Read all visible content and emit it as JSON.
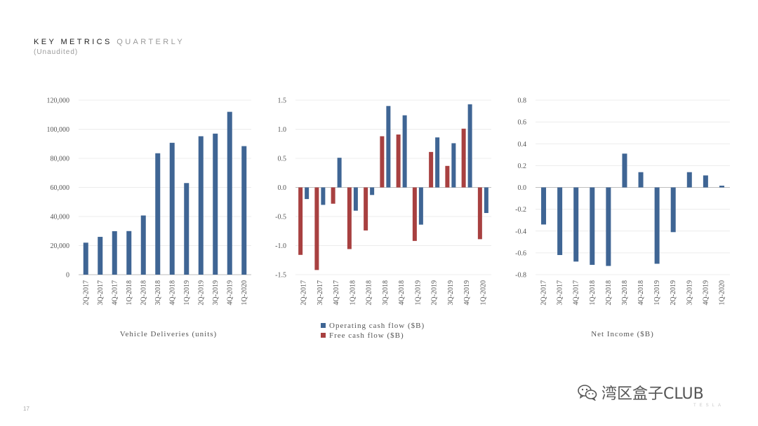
{
  "header": {
    "title_strong": "KEY METRICS",
    "title_dim": "QUARTERLY",
    "subtitle": "(Unaudited)"
  },
  "page_number": "17",
  "watermark": {
    "text": "湾区盒子CLUB",
    "icon": "wechat-icon"
  },
  "brand_text": "TESLA",
  "colors": {
    "blue": "#3f6594",
    "red": "#a84040",
    "grid": "#ececec",
    "axis": "#bdbdbd"
  },
  "chart_data": [
    {
      "type": "bar",
      "title": "Vehicle Deliveries (units)",
      "categories": [
        "2Q-2017",
        "3Q-2017",
        "4Q-2017",
        "1Q-2018",
        "2Q-2018",
        "3Q-2018",
        "4Q-2018",
        "1Q-2019",
        "2Q-2019",
        "3Q-2019",
        "4Q-2019",
        "1Q-2020"
      ],
      "series": [
        {
          "name": "Vehicle Deliveries",
          "color": "#3f6594",
          "values": [
            22000,
            26000,
            29900,
            29980,
            40700,
            83500,
            90700,
            63000,
            95200,
            97000,
            112000,
            88400
          ]
        }
      ],
      "ylim": [
        0,
        120000
      ],
      "yticks": [
        0,
        20000,
        40000,
        60000,
        80000,
        100000,
        120000
      ],
      "ytick_labels": [
        "0",
        "20,000",
        "40,000",
        "60,000",
        "80,000",
        "100,000",
        "120,000"
      ],
      "grid": true
    },
    {
      "type": "bar",
      "title": "",
      "categories": [
        "2Q-2017",
        "3Q-2017",
        "4Q-2017",
        "1Q-2018",
        "2Q-2018",
        "3Q-2018",
        "4Q-2018",
        "1Q-2019",
        "2Q-2019",
        "3Q-2019",
        "4Q-2019",
        "1Q-2020"
      ],
      "series": [
        {
          "name": "Free cash flow ($B)",
          "color": "#a84040",
          "values": [
            -1.16,
            -1.42,
            -0.28,
            -1.06,
            -0.74,
            0.88,
            0.91,
            -0.92,
            0.61,
            0.37,
            1.01,
            -0.89
          ]
        },
        {
          "name": "Operating cash flow ($B)",
          "color": "#3f6594",
          "values": [
            -0.2,
            -0.3,
            0.51,
            -0.4,
            -0.13,
            1.4,
            1.24,
            -0.64,
            0.86,
            0.76,
            1.43,
            -0.44
          ]
        }
      ],
      "legend": [
        "Operating cash flow ($B)",
        "Free cash flow ($B)"
      ],
      "legend_position": "bottom",
      "ylim": [
        -1.5,
        1.5
      ],
      "yticks": [
        -1.5,
        -1.0,
        -0.5,
        0.0,
        0.5,
        1.0,
        1.5
      ],
      "ytick_labels": [
        "-1.5",
        "-1.0",
        "-0.5",
        "0.0",
        "0.5",
        "1.0",
        "1.5"
      ],
      "grid": true
    },
    {
      "type": "bar",
      "title": "Net Income ($B)",
      "categories": [
        "2Q-2017",
        "3Q-2017",
        "4Q-2017",
        "1Q-2018",
        "2Q-2018",
        "3Q-2018",
        "4Q-2018",
        "1Q-2019",
        "2Q-2019",
        "3Q-2019",
        "4Q-2019",
        "1Q-2020"
      ],
      "series": [
        {
          "name": "Net Income",
          "color": "#3f6594",
          "values": [
            -0.34,
            -0.62,
            -0.68,
            -0.71,
            -0.72,
            0.31,
            0.14,
            -0.7,
            -0.41,
            0.14,
            0.11,
            0.016
          ]
        }
      ],
      "ylim": [
        -0.8,
        0.8
      ],
      "yticks": [
        -0.8,
        -0.6,
        -0.4,
        -0.2,
        0.0,
        0.2,
        0.4,
        0.6,
        0.8
      ],
      "ytick_labels": [
        "-0.8",
        "-0.6",
        "-0.4",
        "-0.2",
        "0.0",
        "0.2",
        "0.4",
        "0.6",
        "0.8"
      ],
      "grid": true
    }
  ]
}
